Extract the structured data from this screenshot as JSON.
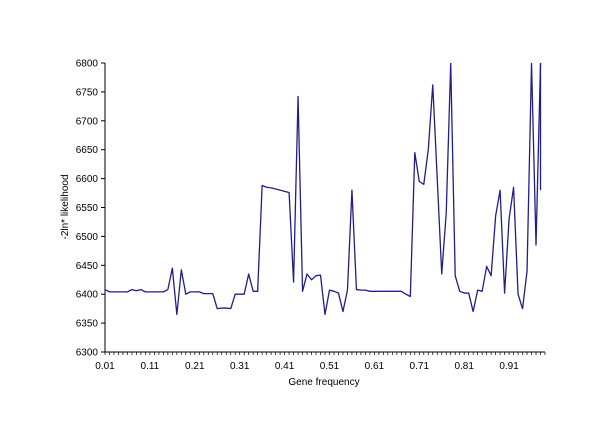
{
  "chart_data": {
    "type": "line",
    "xlabel": "Gene frequency",
    "ylabel": "-2ln* likelihood",
    "xlim": [
      0.01,
      0.99
    ],
    "ylim": [
      6300,
      6800
    ],
    "x_ticks": [
      "0.01",
      "0.11",
      "0.21",
      "0.31",
      "0.41",
      "0.51",
      "0.61",
      "0.71",
      "0.81",
      "0.91"
    ],
    "y_ticks": [
      "6300",
      "6350",
      "6400",
      "6450",
      "6500",
      "6550",
      "6600",
      "6650",
      "6700",
      "6750",
      "6800"
    ],
    "grid": false,
    "line_color": "#1f1f8a",
    "series": [
      {
        "x": [
          0.01,
          0.02,
          0.03,
          0.04,
          0.05,
          0.06,
          0.07,
          0.08,
          0.09,
          0.1,
          0.11,
          0.12,
          0.13,
          0.14,
          0.15,
          0.16,
          0.17,
          0.18,
          0.19,
          0.2,
          0.21,
          0.22,
          0.23,
          0.24,
          0.25,
          0.26,
          0.27,
          0.28,
          0.29,
          0.3,
          0.31,
          0.32,
          0.33,
          0.34,
          0.35,
          0.36,
          0.37,
          0.38,
          0.39,
          0.4,
          0.41,
          0.42,
          0.43,
          0.44,
          0.45,
          0.46,
          0.47,
          0.48,
          0.49,
          0.5,
          0.51,
          0.52,
          0.53,
          0.54,
          0.55,
          0.56,
          0.57,
          0.58,
          0.59,
          0.6,
          0.61,
          0.62,
          0.63,
          0.64,
          0.65,
          0.66,
          0.67,
          0.68,
          0.69,
          0.7,
          0.71,
          0.72,
          0.73,
          0.74,
          0.75,
          0.76,
          0.77,
          0.78,
          0.79,
          0.8,
          0.81,
          0.82,
          0.83,
          0.84,
          0.85,
          0.86,
          0.87,
          0.88,
          0.89,
          0.9,
          0.91,
          0.92,
          0.93,
          0.94,
          0.95,
          0.96,
          0.97,
          0.98
        ],
        "y": [
          6408,
          6404,
          6404,
          6404,
          6404,
          6404,
          6408,
          6406,
          6408,
          6404,
          6404,
          6404,
          6404,
          6404,
          6408,
          6445,
          6365,
          6442,
          6400,
          6404,
          6404,
          6404,
          6401,
          6401,
          6401,
          6375,
          6376,
          6376,
          6375,
          6400,
          6400,
          6400,
          6435,
          6405,
          6405,
          6588,
          6585,
          6584,
          6582,
          6580,
          6578,
          6576,
          6421,
          6742,
          6405,
          6435,
          6425,
          6432,
          6433,
          6365,
          6407,
          6405,
          6402,
          6370,
          6407,
          6580,
          6408,
          6407,
          6407,
          6405,
          6405,
          6405,
          6405,
          6405,
          6405,
          6405,
          6405,
          6400,
          6396,
          6645,
          6595,
          6590,
          6650,
          6762,
          6600,
          6435,
          6540,
          6800,
          6432,
          6405,
          6402,
          6402,
          6370,
          6407,
          6405,
          6448,
          6432,
          6535,
          6580,
          6402,
          6530,
          6585,
          6400,
          6375,
          6440,
          6800,
          6485,
          6800
        ]
      },
      {
        "x": [
          0.98,
          0.98
        ],
        "y": [
          6580,
          6800
        ]
      }
    ]
  }
}
